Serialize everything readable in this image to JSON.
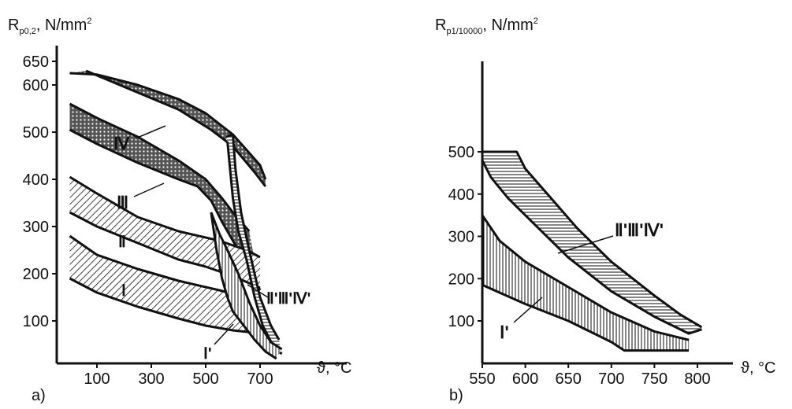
{
  "chart_data": [
    {
      "type": "area",
      "panel_label": "a)",
      "ylabel_main": "R",
      "ylabel_sub": "p0,2",
      "ylabel_unit": ", N/mm",
      "ylabel_sup": "2",
      "xlabel": "ϑ, °C",
      "xlim": [
        0,
        850
      ],
      "ylim": [
        0,
        680
      ],
      "xticks": [
        100,
        300,
        500,
        700
      ],
      "yticks": [
        100,
        200,
        300,
        400,
        500,
        600,
        650
      ],
      "grid": false,
      "series": [
        {
          "name": "IV",
          "pattern": "cross",
          "upper": [
            [
              0,
              625
            ],
            [
              100,
              622
            ],
            [
              250,
              600
            ],
            [
              400,
              570
            ],
            [
              500,
              540
            ],
            [
              600,
              495
            ],
            [
              700,
              430
            ],
            [
              720,
              400
            ]
          ],
          "lower": [
            [
              60,
              630
            ],
            [
              200,
              596
            ],
            [
              400,
              548
            ],
            [
              520,
              505
            ],
            [
              600,
              470
            ],
            [
              680,
              415
            ],
            [
              720,
              385
            ]
          ]
        },
        {
          "name": "III",
          "pattern": "cross",
          "upper": [
            [
              0,
              560
            ],
            [
              100,
              530
            ],
            [
              250,
              490
            ],
            [
              400,
              440
            ],
            [
              500,
              400
            ],
            [
              560,
              360
            ],
            [
              600,
              330
            ],
            [
              660,
              290
            ]
          ],
          "lower": [
            [
              0,
              505
            ],
            [
              100,
              475
            ],
            [
              250,
              435
            ],
            [
              400,
              400
            ],
            [
              470,
              385
            ],
            [
              520,
              355
            ],
            [
              560,
              310
            ],
            [
              600,
              270
            ],
            [
              650,
              220
            ],
            [
              700,
              165
            ]
          ]
        },
        {
          "name": "II",
          "pattern": "diag",
          "upper": [
            [
              0,
              405
            ],
            [
              100,
              370
            ],
            [
              250,
              320
            ],
            [
              400,
              290
            ],
            [
              550,
              270
            ],
            [
              650,
              250
            ],
            [
              700,
              235
            ]
          ],
          "lower": [
            [
              0,
              330
            ],
            [
              100,
              300
            ],
            [
              250,
              265
            ],
            [
              400,
              230
            ],
            [
              500,
              215
            ],
            [
              600,
              195
            ],
            [
              700,
              170
            ]
          ]
        },
        {
          "name": "I",
          "pattern": "diag",
          "upper": [
            [
              0,
              280
            ],
            [
              100,
              240
            ],
            [
              250,
              210
            ],
            [
              400,
              185
            ],
            [
              550,
              165
            ],
            [
              650,
              150
            ]
          ],
          "lower": [
            [
              0,
              190
            ],
            [
              100,
              160
            ],
            [
              250,
              130
            ],
            [
              400,
              105
            ],
            [
              500,
              90
            ],
            [
              600,
              80
            ],
            [
              680,
              75
            ]
          ]
        },
        {
          "name": "II'III'IV'",
          "pattern": "horiz",
          "upper": [
            [
              575,
              490
            ],
            [
              600,
              495
            ],
            [
              610,
              420
            ],
            [
              630,
              330
            ],
            [
              660,
              250
            ],
            [
              700,
              150
            ],
            [
              740,
              90
            ],
            [
              770,
              60
            ]
          ],
          "lower": [
            [
              580,
              480
            ],
            [
              600,
              360
            ],
            [
              620,
              290
            ],
            [
              650,
              230
            ],
            [
              680,
              150
            ],
            [
              710,
              90
            ],
            [
              750,
              45
            ],
            [
              780,
              30
            ]
          ]
        },
        {
          "name": "I'",
          "pattern": "vert",
          "upper": [
            [
              520,
              330
            ],
            [
              550,
              285
            ],
            [
              580,
              250
            ],
            [
              620,
              200
            ],
            [
              660,
              140
            ],
            [
              700,
              90
            ],
            [
              740,
              55
            ],
            [
              780,
              40
            ]
          ],
          "lower": [
            [
              520,
              330
            ],
            [
              540,
              250
            ],
            [
              560,
              190
            ],
            [
              580,
              150
            ],
            [
              600,
              120
            ],
            [
              640,
              90
            ],
            [
              680,
              60
            ],
            [
              720,
              35
            ],
            [
              760,
              20
            ]
          ]
        }
      ],
      "annotations": [
        "Ⅳ",
        "Ⅲ",
        "Ⅱ",
        "Ⅰ",
        "Ⅱ'Ⅲ'Ⅳ'",
        "Ⅰ'"
      ]
    },
    {
      "type": "area",
      "panel_label": "b)",
      "ylabel_main": "R",
      "ylabel_sub": "p1/10000",
      "ylabel_unit": ", N/mm",
      "ylabel_sup": "2",
      "xlabel": "ϑ, °C",
      "xlim": [
        550,
        830
      ],
      "ylim": [
        0,
        680
      ],
      "xticks": [
        550,
        600,
        650,
        700,
        750,
        800
      ],
      "yticks": [
        100,
        200,
        300,
        400,
        500
      ],
      "grid": false,
      "series": [
        {
          "name": "II'III'IV'",
          "pattern": "horiz",
          "upper": [
            [
              550,
              500
            ],
            [
              590,
              500
            ],
            [
              600,
              460
            ],
            [
              630,
              390
            ],
            [
              660,
              320
            ],
            [
              700,
              240
            ],
            [
              750,
              160
            ],
            [
              780,
              115
            ],
            [
              805,
              85
            ]
          ],
          "lower": [
            [
              550,
              480
            ],
            [
              560,
              440
            ],
            [
              580,
              390
            ],
            [
              610,
              330
            ],
            [
              650,
              250
            ],
            [
              700,
              170
            ],
            [
              750,
              110
            ],
            [
              790,
              70
            ],
            [
              805,
              80
            ]
          ]
        },
        {
          "name": "I'",
          "pattern": "vert",
          "upper": [
            [
              550,
              350
            ],
            [
              570,
              290
            ],
            [
              600,
              240
            ],
            [
              650,
              180
            ],
            [
              700,
              120
            ],
            [
              750,
              75
            ],
            [
              790,
              55
            ]
          ],
          "lower": [
            [
              550,
              185
            ],
            [
              600,
              140
            ],
            [
              650,
              100
            ],
            [
              700,
              50
            ],
            [
              715,
              30
            ],
            [
              790,
              30
            ]
          ]
        }
      ],
      "annotations": [
        "Ⅱ'Ⅲ'Ⅳ'",
        "Ⅰ'"
      ]
    }
  ]
}
